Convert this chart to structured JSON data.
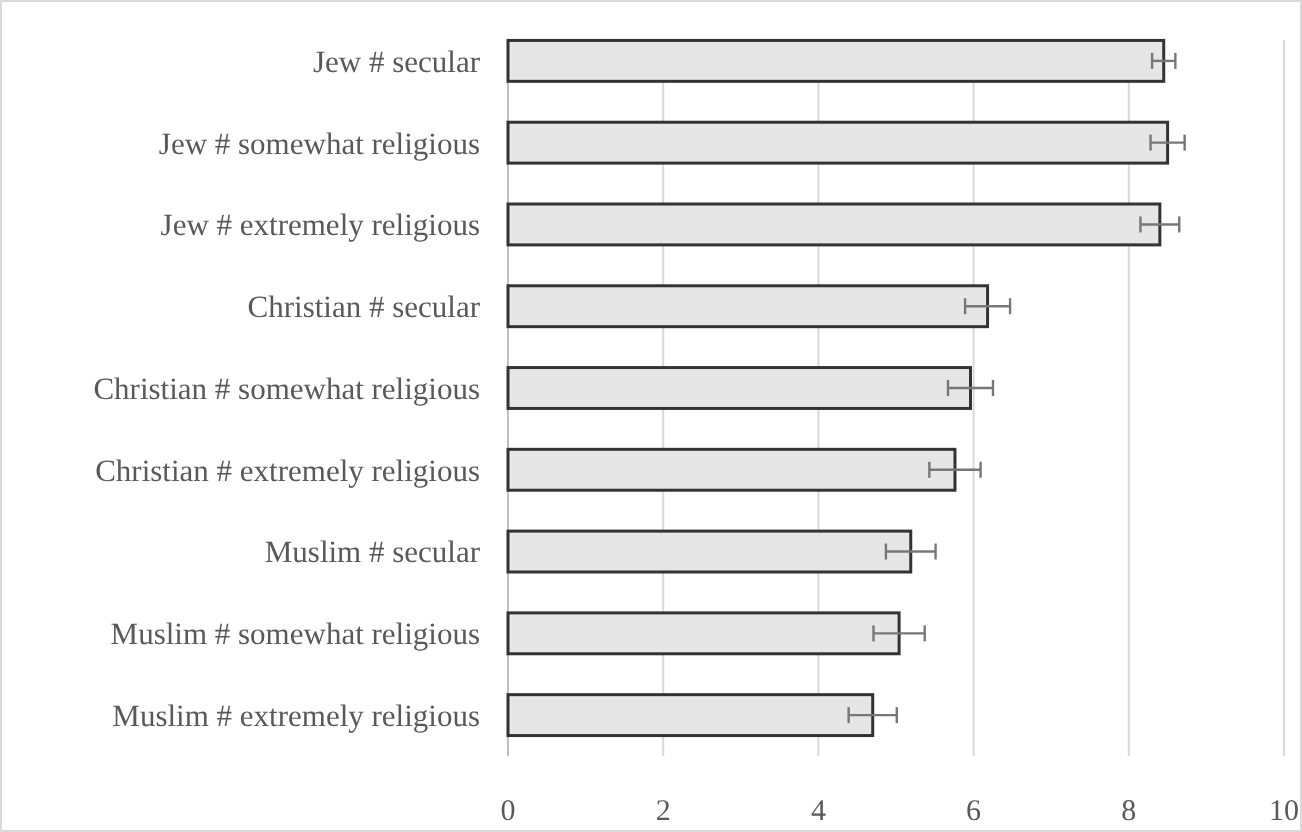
{
  "chart_data": {
    "type": "bar",
    "orientation": "horizontal",
    "categories": [
      "Jew # secular",
      "Jew # somewhat religious",
      "Jew # extremely religious",
      "Christian # secular",
      "Christian # somewhat religious",
      "Christian # extremely religious",
      "Muslim # secular",
      "Muslim # somewhat religious",
      "Muslim # extremely religious"
    ],
    "values": [
      8.45,
      8.5,
      8.4,
      6.18,
      5.96,
      5.76,
      5.19,
      5.04,
      4.7
    ],
    "errors": [
      0.15,
      0.22,
      0.25,
      0.29,
      0.29,
      0.33,
      0.32,
      0.33,
      0.31
    ],
    "color": "#e6e6e6",
    "xlim": [
      0,
      10
    ],
    "xticks": [
      0,
      2,
      4,
      6,
      8,
      10
    ],
    "grid": "x"
  }
}
